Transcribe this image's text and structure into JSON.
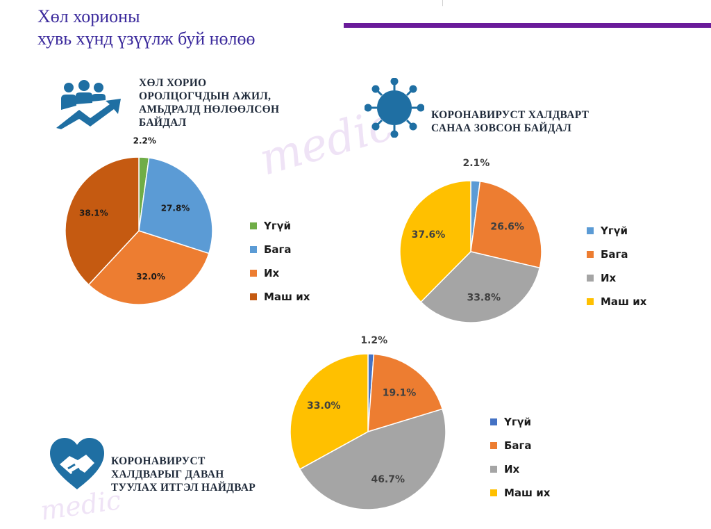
{
  "title": {
    "line1": "Хөл хорионы",
    "line2": "хувь хүнд үзүүлж буй нөлөө"
  },
  "colors": {
    "title": "#3b2a9c",
    "accent_bar": "#6a1b9a",
    "icon_blue": "#1f6fa3"
  },
  "chart_data": [
    {
      "type": "pie",
      "title": "ХӨЛ ХОРИО ОРОЛЦОГЧДЫН АЖИЛ, АМЬДРАЛД НӨЛӨӨЛСӨН БАЙДАЛ",
      "title_lines": [
        "ХӨЛ ХОРИО",
        "ОРОЛЦОГЧДЫН АЖИЛ,",
        "АМЬДРАЛД НӨЛӨӨЛСӨН",
        "БАЙДАЛ"
      ],
      "categories": [
        "Үгүй",
        "Бага",
        "Их",
        "Маш их"
      ],
      "values": [
        2.2,
        27.8,
        32.0,
        38.1
      ],
      "labels": [
        "2.2%",
        "27.8%",
        "32.0%",
        "38.1%"
      ],
      "colors": [
        "#70ad47",
        "#5b9bd5",
        "#ed7d31",
        "#c55a11"
      ],
      "legend_position": "right"
    },
    {
      "type": "pie",
      "title": "КОРОНАВИРУСТ ХАЛДВАРТ САНАА ЗОВСОН БАЙДАЛ",
      "title_lines": [
        "КОРОНАВИРУСТ ХАЛДВАРТ",
        "САНАА ЗОВСОН БАЙДАЛ"
      ],
      "categories": [
        "Үгүй",
        "Бага",
        "Их",
        "Маш их"
      ],
      "values": [
        2.1,
        26.6,
        33.8,
        37.6
      ],
      "labels": [
        "2.1%",
        "26.6%",
        "33.8%",
        "37.6%"
      ],
      "colors": [
        "#5b9bd5",
        "#ed7d31",
        "#a5a5a5",
        "#ffc000"
      ],
      "legend_position": "right"
    },
    {
      "type": "pie",
      "title": "КОРОНАВИРУСТ ХАЛДВАРЫГ ДАВАН ТУУЛАХ ИТГЭЛ НАЙДВАР",
      "title_lines": [
        "КОРОНАВИРУСТ",
        "ХАЛДВАРЫГ ДАВАН",
        "ТУУЛАХ ИТГЭЛ НАЙДВАР"
      ],
      "categories": [
        "Үгүй",
        "Бага",
        "Их",
        "Маш их"
      ],
      "values": [
        1.2,
        19.1,
        46.7,
        33.0
      ],
      "labels": [
        "1.2%",
        "19.1%",
        "46.7%",
        "33.0%"
      ],
      "colors": [
        "#4472c4",
        "#ed7d31",
        "#a5a5a5",
        "#ffc000"
      ],
      "legend_position": "right"
    }
  ]
}
